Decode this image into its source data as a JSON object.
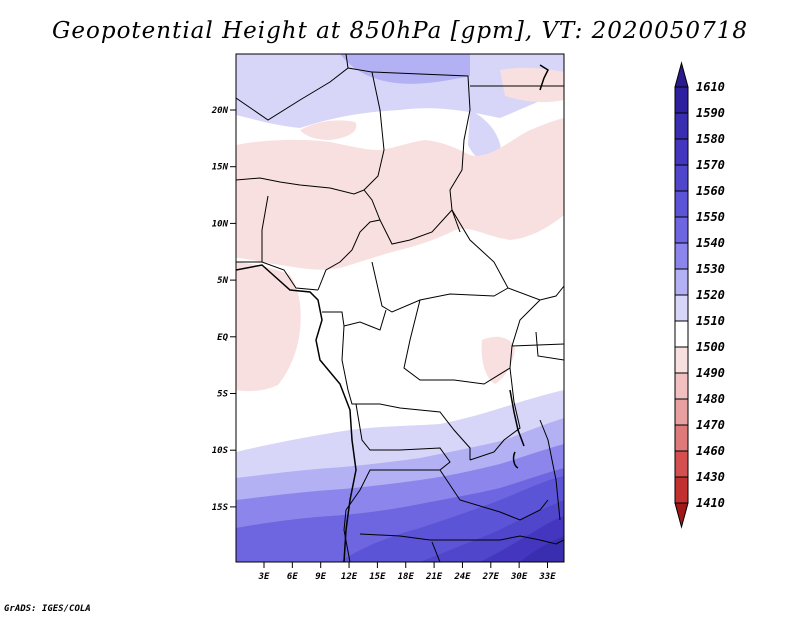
{
  "title": "Geopotential Height at 850hPa [gpm], VT: 2020050718",
  "credit": "GrADS: IGES/COLA",
  "map": {
    "lat_labels": [
      "20N",
      "15N",
      "10N",
      "5N",
      "EQ",
      "5S",
      "10S",
      "15S"
    ],
    "lon_labels": [
      "3E",
      "6E",
      "9E",
      "12E",
      "15E",
      "18E",
      "21E",
      "24E",
      "27E",
      "30E",
      "33E"
    ]
  },
  "colorbar": {
    "levels": [
      "1610",
      "1590",
      "1580",
      "1570",
      "1560",
      "1550",
      "1540",
      "1530",
      "1520",
      "1510",
      "1500",
      "1490",
      "1480",
      "1470",
      "1460",
      "1430",
      "1410"
    ],
    "colors": [
      "#2e1f9e",
      "#3a2eb0",
      "#4436bf",
      "#5046cc",
      "#5c54d6",
      "#6e66e0",
      "#8c86ec",
      "#b3b0f3",
      "#d7d6f8",
      "#ffffff",
      "#f9e0e0",
      "#f2c0c0",
      "#e8a0a0",
      "#de7a7a",
      "#d45050",
      "#c23030",
      "#a01a1a"
    ],
    "top_arrow_color": "#2a1a90",
    "bottom_arrow_color": "#a01818"
  }
}
